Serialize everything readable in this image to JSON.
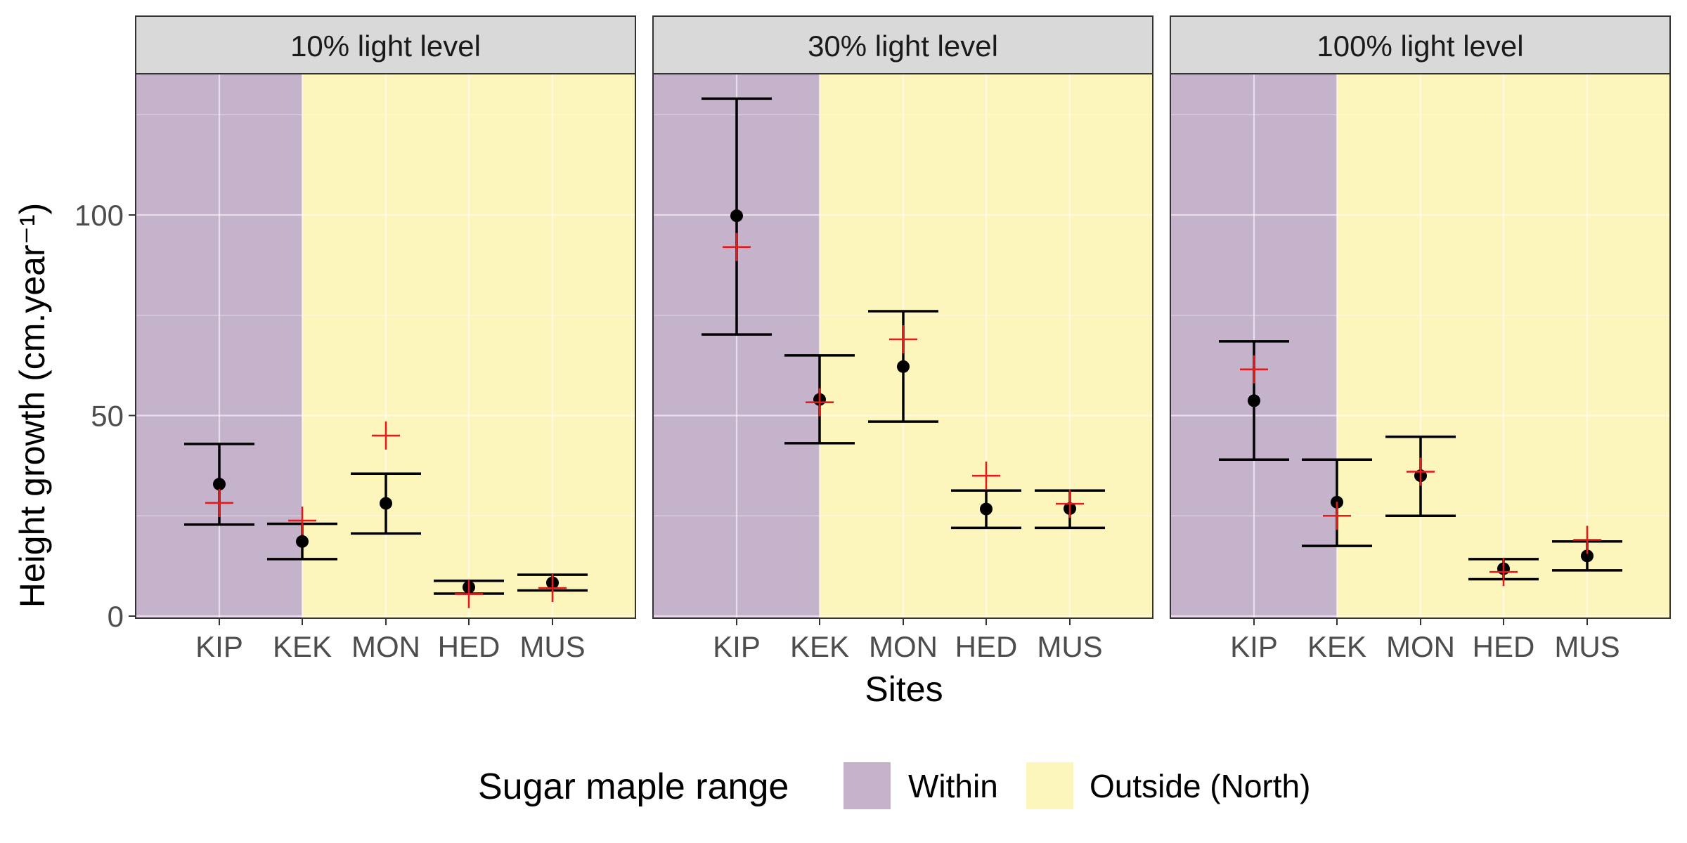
{
  "chart_data": {
    "type": "scatter",
    "layout": "faceted",
    "xlabel": "Sites",
    "ylabel": "Height growth (cm.year⁻¹)",
    "ylim": [
      0,
      135
    ],
    "y_ticks": [
      0,
      50,
      100
    ],
    "categories": [
      "KIP",
      "KEK",
      "MON",
      "HED",
      "MUS"
    ],
    "grid": true,
    "legend": {
      "title": "Sugar maple range",
      "placement": "bottom",
      "entries": [
        {
          "label": "Within",
          "color": "#c5b3cc"
        },
        {
          "label": "Outside (North)",
          "color": "#fdf6bc"
        }
      ]
    },
    "colors": {
      "observed_point": "#000000",
      "predicted_marker": "#e41a1c",
      "within": "#c5b3cc",
      "outside": "#fdf6bc",
      "strip": "#d9d9d9"
    },
    "within_sites": [
      "KIP"
    ],
    "boundary_category": "KEK",
    "panels": [
      {
        "title": "10% light level",
        "observed": [
          32.9,
          18.6,
          28.1,
          7.2,
          8.3
        ],
        "lower": [
          22.8,
          14.2,
          20.6,
          5.6,
          6.4
        ],
        "upper": [
          42.9,
          23.0,
          35.5,
          8.8,
          10.3
        ],
        "predicted": [
          28.2,
          23.8,
          45.0,
          5.5,
          7.0
        ]
      },
      {
        "title": "30% light level",
        "observed": [
          99.8,
          54.0,
          62.2,
          26.7,
          26.8
        ],
        "lower": [
          70.2,
          43.1,
          48.5,
          22.0,
          22.0
        ],
        "upper": [
          129.0,
          65.0,
          76.0,
          31.3,
          31.3
        ],
        "predicted": [
          92.0,
          53.3,
          69.0,
          35.0,
          28.0
        ]
      },
      {
        "title": "100% light level",
        "observed": [
          53.7,
          28.4,
          35.0,
          11.8,
          15.0
        ],
        "lower": [
          39.0,
          17.5,
          25.0,
          9.2,
          11.4
        ],
        "upper": [
          68.5,
          39.0,
          44.7,
          14.2,
          18.6
        ],
        "predicted": [
          61.5,
          25.0,
          36.0,
          11.0,
          19.0
        ]
      }
    ]
  }
}
